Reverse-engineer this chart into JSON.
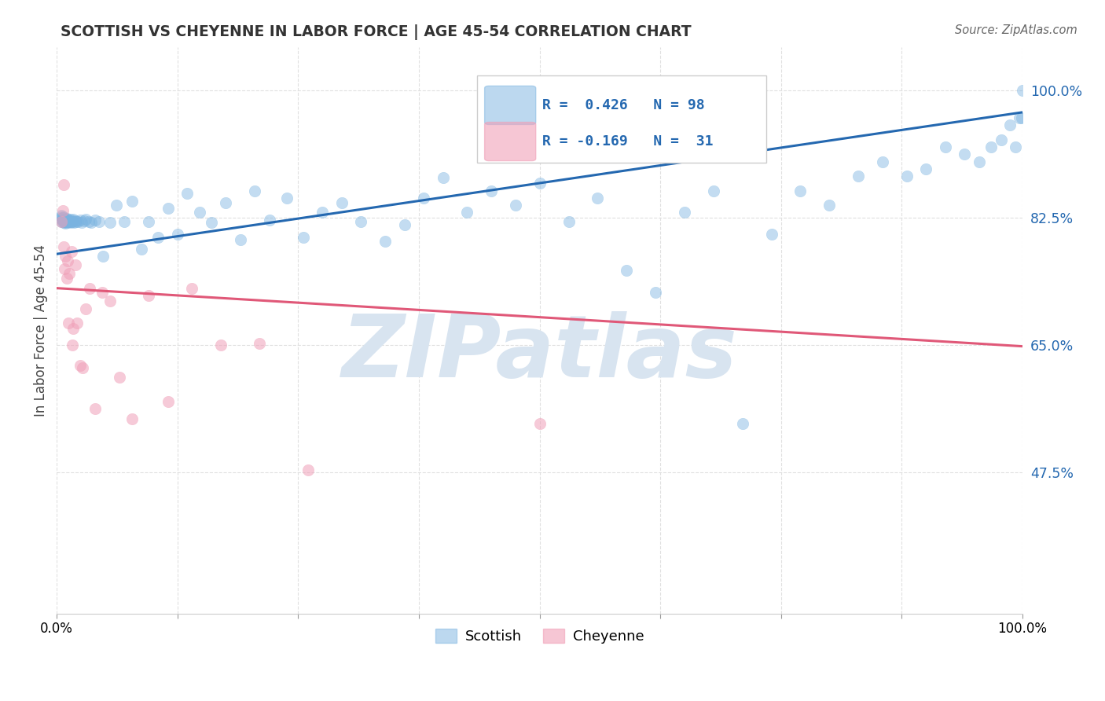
{
  "title": "SCOTTISH VS CHEYENNE IN LABOR FORCE | AGE 45-54 CORRELATION CHART",
  "source": "Source: ZipAtlas.com",
  "ylabel": "In Labor Force | Age 45-54",
  "xlim": [
    0.0,
    1.0
  ],
  "ylim": [
    0.28,
    1.06
  ],
  "yticks": [
    0.475,
    0.65,
    0.825,
    1.0
  ],
  "ytick_labels": [
    "47.5%",
    "65.0%",
    "82.5%",
    "100.0%"
  ],
  "xticks": [
    0.0,
    0.125,
    0.25,
    0.375,
    0.5,
    0.625,
    0.75,
    0.875,
    1.0
  ],
  "xtick_labels": [
    "0.0%",
    "",
    "",
    "",
    "",
    "",
    "",
    "",
    "100.0%"
  ],
  "background_color": "#ffffff",
  "grid_color": "#e0e0e0",
  "watermark_text": "ZIPatlas",
  "watermark_color": "#d8e4f0",
  "blue_scatter_color": "#7ab3e0",
  "pink_scatter_color": "#f0a0b8",
  "blue_line_color": "#2468b0",
  "pink_line_color": "#e05878",
  "legend_R_color": "#2468b0",
  "legend_N_color": "#e03060",
  "blue_line_x0": 0.0,
  "blue_line_y0": 0.775,
  "blue_line_x1": 1.0,
  "blue_line_y1": 0.97,
  "pink_line_x0": 0.0,
  "pink_line_y0": 0.728,
  "pink_line_x1": 1.0,
  "pink_line_y1": 0.648,
  "scottish_x": [
    0.004,
    0.005,
    0.005,
    0.005,
    0.006,
    0.006,
    0.006,
    0.007,
    0.007,
    0.007,
    0.007,
    0.008,
    0.008,
    0.008,
    0.009,
    0.009,
    0.009,
    0.01,
    0.01,
    0.01,
    0.01,
    0.011,
    0.011,
    0.012,
    0.012,
    0.013,
    0.013,
    0.014,
    0.015,
    0.016,
    0.016,
    0.017,
    0.018,
    0.019,
    0.02,
    0.022,
    0.024,
    0.026,
    0.028,
    0.03,
    0.033,
    0.036,
    0.04,
    0.044,
    0.048,
    0.055,
    0.062,
    0.07,
    0.078,
    0.088,
    0.095,
    0.105,
    0.115,
    0.125,
    0.135,
    0.148,
    0.16,
    0.175,
    0.19,
    0.205,
    0.22,
    0.238,
    0.255,
    0.275,
    0.295,
    0.315,
    0.34,
    0.36,
    0.38,
    0.4,
    0.425,
    0.45,
    0.475,
    0.5,
    0.53,
    0.56,
    0.59,
    0.62,
    0.65,
    0.68,
    0.71,
    0.74,
    0.77,
    0.8,
    0.83,
    0.855,
    0.88,
    0.9,
    0.92,
    0.94,
    0.955,
    0.967,
    0.978,
    0.987,
    0.993,
    0.997,
    0.999,
    1.0
  ],
  "scottish_y": [
    0.824,
    0.826,
    0.828,
    0.82,
    0.822,
    0.825,
    0.819,
    0.823,
    0.821,
    0.818,
    0.826,
    0.82,
    0.822,
    0.819,
    0.821,
    0.823,
    0.817,
    0.822,
    0.82,
    0.818,
    0.824,
    0.82,
    0.822,
    0.819,
    0.821,
    0.82,
    0.823,
    0.818,
    0.822,
    0.82,
    0.819,
    0.823,
    0.818,
    0.821,
    0.82,
    0.819,
    0.822,
    0.818,
    0.821,
    0.823,
    0.82,
    0.818,
    0.822,
    0.82,
    0.772,
    0.818,
    0.842,
    0.82,
    0.848,
    0.782,
    0.82,
    0.798,
    0.838,
    0.802,
    0.858,
    0.832,
    0.818,
    0.845,
    0.795,
    0.862,
    0.822,
    0.852,
    0.798,
    0.832,
    0.845,
    0.82,
    0.792,
    0.815,
    0.852,
    0.88,
    0.832,
    0.862,
    0.842,
    0.872,
    0.82,
    0.852,
    0.752,
    0.722,
    0.832,
    0.862,
    0.542,
    0.802,
    0.862,
    0.842,
    0.882,
    0.902,
    0.882,
    0.892,
    0.922,
    0.912,
    0.902,
    0.922,
    0.932,
    0.952,
    0.922,
    0.962,
    0.962,
    1.0
  ],
  "cheyenne_x": [
    0.005,
    0.006,
    0.007,
    0.007,
    0.008,
    0.009,
    0.01,
    0.011,
    0.012,
    0.013,
    0.015,
    0.016,
    0.017,
    0.019,
    0.021,
    0.024,
    0.027,
    0.03,
    0.034,
    0.04,
    0.047,
    0.055,
    0.065,
    0.078,
    0.095,
    0.115,
    0.14,
    0.17,
    0.21,
    0.26,
    0.5
  ],
  "cheyenne_y": [
    0.82,
    0.835,
    0.785,
    0.87,
    0.755,
    0.772,
    0.742,
    0.765,
    0.68,
    0.748,
    0.778,
    0.65,
    0.672,
    0.76,
    0.68,
    0.622,
    0.618,
    0.7,
    0.728,
    0.562,
    0.722,
    0.71,
    0.605,
    0.548,
    0.718,
    0.572,
    0.728,
    0.65,
    0.652,
    0.478,
    0.542
  ]
}
